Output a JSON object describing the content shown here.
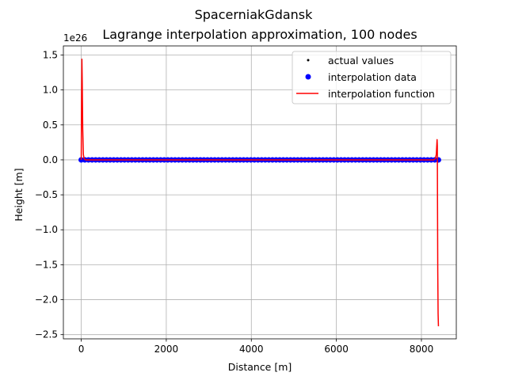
{
  "chart_data": {
    "type": "line",
    "title": "SpacerniakGdansk",
    "subtitle": "Lagrange interpolation approximation, 100 nodes",
    "xlabel": "Distance [m]",
    "ylabel": "Height [m]",
    "offset_text": "1e26",
    "xlim": [
      -420,
      8820
    ],
    "ylim": [
      -2.56,
      1.63
    ],
    "x_ticks": [
      0,
      2000,
      4000,
      6000,
      8000
    ],
    "x_tick_labels": [
      "0",
      "2000",
      "4000",
      "6000",
      "8000"
    ],
    "y_ticks": [
      1.5,
      1.0,
      0.5,
      0.0,
      -0.5,
      -1.0,
      -1.5,
      -2.0,
      -2.5
    ],
    "y_tick_labels": [
      "1.5",
      "1.0",
      "0.5",
      "0.0",
      "−0.5",
      "−1.0",
      "−1.5",
      "−2.0",
      "−2.5"
    ],
    "grid": true,
    "legend_position": "upper-right",
    "series": [
      {
        "name": "actual values",
        "kind": "dots",
        "color": "#000000",
        "x_start": 0,
        "x_end": 8400,
        "count": 512,
        "y_value": 0
      },
      {
        "name": "interpolation data",
        "kind": "markers",
        "color": "#0000ff",
        "x_start": 0,
        "x_end": 8400,
        "count": 100,
        "y_value": 0
      },
      {
        "name": "interpolation function",
        "kind": "line",
        "color": "#ff0000",
        "x": [
          0,
          8,
          16,
          24,
          35,
          50,
          65,
          85,
          110,
          150,
          200,
          8200,
          8290,
          8330,
          8350,
          8360,
          8368,
          8374,
          8378,
          8384,
          8392,
          8400
        ],
        "y": [
          0.0,
          0.9,
          1.44,
          1.1,
          0.45,
          0.08,
          0.02,
          0.004,
          0.0,
          0.0,
          0.0,
          0.0,
          0.0,
          0.02,
          0.08,
          0.2,
          0.29,
          0.2,
          -0.6,
          -1.6,
          -2.2,
          -2.38
        ]
      }
    ]
  }
}
